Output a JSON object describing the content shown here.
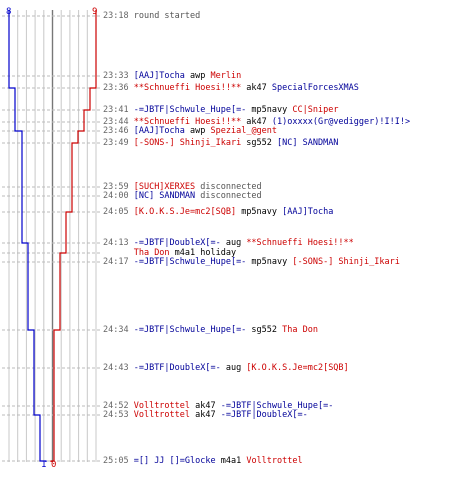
{
  "score": {
    "blue_top": "8",
    "red_top": "9",
    "blue_bottom": "1",
    "red_bottom": "0"
  },
  "colors": {
    "blue": "#0000cc",
    "red": "#cc0000",
    "grid": "#c8c8c8",
    "center": "#777777"
  },
  "grid": {
    "columns": 10
  },
  "events": [
    {
      "time": "23:18",
      "parts": [
        {
          "t": "round started",
          "c": "g"
        }
      ]
    },
    {
      "time": "23:33",
      "parts": [
        {
          "t": "[AAJ]Tocha",
          "c": "b"
        },
        {
          "t": " awp ",
          "c": "ev"
        },
        {
          "t": "Merlin",
          "c": "r"
        }
      ]
    },
    {
      "time": "23:36",
      "parts": [
        {
          "t": "**Schnueffi Hoesi!!**",
          "c": "r"
        },
        {
          "t": " ak47 ",
          "c": "ev"
        },
        {
          "t": "SpecialForcesXMAS",
          "c": "b"
        }
      ]
    },
    {
      "time": "23:41",
      "parts": [
        {
          "t": "-=JBTF|Schwule_Hupe[=-",
          "c": "b"
        },
        {
          "t": " mp5navy ",
          "c": "ev"
        },
        {
          "t": "CC|Sniper",
          "c": "r"
        }
      ]
    },
    {
      "time": "23:44",
      "parts": [
        {
          "t": "**Schnueffi Hoesi!!**",
          "c": "r"
        },
        {
          "t": " ak47 ",
          "c": "ev"
        },
        {
          "t": "(1)oxxxx(Gr@vedigger)!I!I!>",
          "c": "b"
        }
      ]
    },
    {
      "time": "23:46",
      "parts": [
        {
          "t": "[AAJ]Tocha",
          "c": "b"
        },
        {
          "t": " awp ",
          "c": "ev"
        },
        {
          "t": "Spezial_@gent",
          "c": "r"
        }
      ]
    },
    {
      "time": "23:49",
      "parts": [
        {
          "t": "[-SONS-] Shinji_Ikari",
          "c": "r"
        },
        {
          "t": " sg552 ",
          "c": "ev"
        },
        {
          "t": "[NC] SANDMAN",
          "c": "b"
        }
      ]
    },
    {
      "time": "23:59",
      "parts": [
        {
          "t": "[SUCH]XERXES",
          "c": "r"
        },
        {
          "t": " disconnected",
          "c": "g"
        }
      ]
    },
    {
      "time": "24:00",
      "parts": [
        {
          "t": "[NC] SANDMAN",
          "c": "b"
        },
        {
          "t": " disconnected",
          "c": "g"
        }
      ]
    },
    {
      "time": "24:05",
      "parts": [
        {
          "t": "[K.O.K.S.Je=mc2[SQB]",
          "c": "r"
        },
        {
          "t": " mp5navy ",
          "c": "ev"
        },
        {
          "t": "[AAJ]Tocha",
          "c": "b"
        }
      ]
    },
    {
      "time": "24:13",
      "parts": [
        {
          "t": "-=JBTF|DoubleX[=-",
          "c": "b"
        },
        {
          "t": " aug ",
          "c": "ev"
        },
        {
          "t": "**Schnueffi Hoesi!!**",
          "c": "r"
        }
      ]
    },
    {
      "time": "",
      "parts": [
        {
          "t": "Tha Don",
          "c": "r"
        },
        {
          "t": " m4a1 holiday",
          "c": "ev"
        }
      ]
    },
    {
      "time": "24:17",
      "parts": [
        {
          "t": "-=JBTF|Schwule_Hupe[=-",
          "c": "b"
        },
        {
          "t": " mp5navy ",
          "c": "ev"
        },
        {
          "t": "[-SONS-] Shinji_Ikari",
          "c": "r"
        }
      ]
    },
    {
      "time": "24:34",
      "parts": [
        {
          "t": "-=JBTF|Schwule_Hupe[=-",
          "c": "b"
        },
        {
          "t": " sg552 ",
          "c": "ev"
        },
        {
          "t": "Tha Don",
          "c": "r"
        }
      ]
    },
    {
      "time": "24:43",
      "parts": [
        {
          "t": "-=JBTF|DoubleX[=-",
          "c": "b"
        },
        {
          "t": " aug ",
          "c": "ev"
        },
        {
          "t": "[K.O.K.S.Je=mc2[SQB]",
          "c": "r"
        }
      ]
    },
    {
      "time": "24:52",
      "parts": [
        {
          "t": "Volltrottel",
          "c": "r"
        },
        {
          "t": " ak47 ",
          "c": "ev"
        },
        {
          "t": "-=JBTF|Schwule_Hupe[=-",
          "c": "b"
        }
      ]
    },
    {
      "time": "24:53",
      "parts": [
        {
          "t": "Volltrottel",
          "c": "r"
        },
        {
          "t": " ak47 ",
          "c": "ev"
        },
        {
          "t": "-=JBTF|DoubleX[=-",
          "c": "b"
        }
      ]
    },
    {
      "time": "25:05",
      "parts": [
        {
          "t": "=[] JJ []=Glocke",
          "c": "b"
        },
        {
          "t": " m4a1 ",
          "c": "ev"
        },
        {
          "t": "Volltrottel",
          "c": "r"
        }
      ]
    }
  ]
}
